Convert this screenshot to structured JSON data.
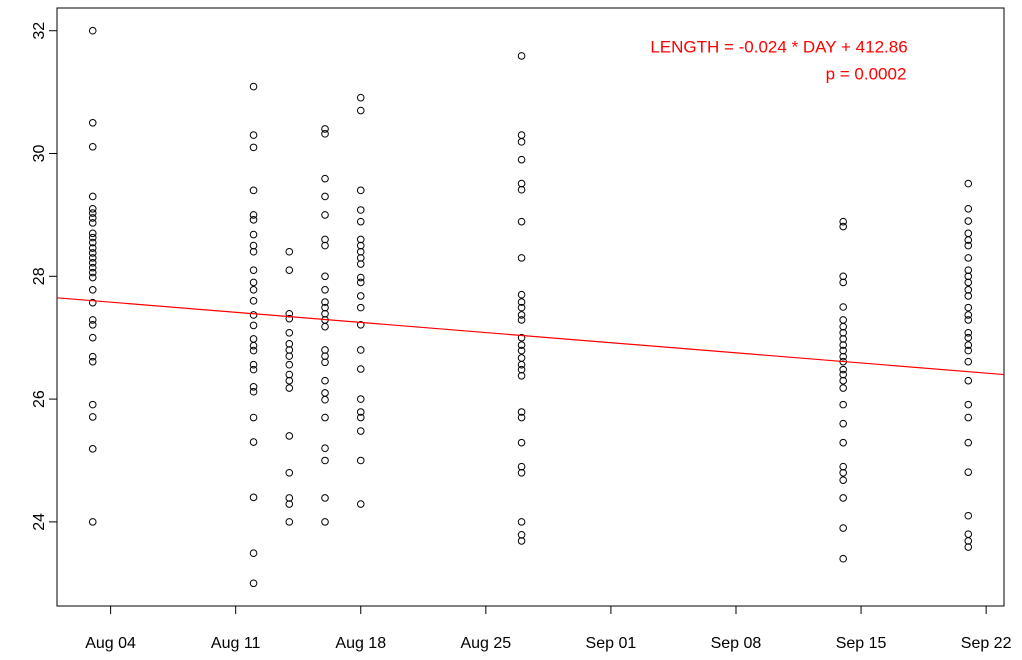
{
  "chart_data": {
    "type": "scatter",
    "annotations": [
      "LENGTH = -0.024 * DAY + 412.86",
      "p = 0.0002"
    ],
    "annotation_color": "#ff0000",
    "x": [
      "Aug 03",
      "Aug 03",
      "Aug 03",
      "Aug 03",
      "Aug 03",
      "Aug 03",
      "Aug 03",
      "Aug 03",
      "Aug 03",
      "Aug 03",
      "Aug 03",
      "Aug 03",
      "Aug 03",
      "Aug 03",
      "Aug 03",
      "Aug 03",
      "Aug 03",
      "Aug 03",
      "Aug 03",
      "Aug 03",
      "Aug 03",
      "Aug 03",
      "Aug 03",
      "Aug 03",
      "Aug 03",
      "Aug 03",
      "Aug 03",
      "Aug 03",
      "Aug 03",
      "Aug 12",
      "Aug 12",
      "Aug 12",
      "Aug 12",
      "Aug 12",
      "Aug 12",
      "Aug 12",
      "Aug 12",
      "Aug 12",
      "Aug 12",
      "Aug 12",
      "Aug 12",
      "Aug 12",
      "Aug 12",
      "Aug 12",
      "Aug 12",
      "Aug 12",
      "Aug 12",
      "Aug 12",
      "Aug 12",
      "Aug 12",
      "Aug 12",
      "Aug 12",
      "Aug 12",
      "Aug 12",
      "Aug 12",
      "Aug 12",
      "Aug 14",
      "Aug 14",
      "Aug 14",
      "Aug 14",
      "Aug 14",
      "Aug 14",
      "Aug 14",
      "Aug 14",
      "Aug 14",
      "Aug 14",
      "Aug 14",
      "Aug 14",
      "Aug 14",
      "Aug 14",
      "Aug 14",
      "Aug 14",
      "Aug 14",
      "Aug 16",
      "Aug 16",
      "Aug 16",
      "Aug 16",
      "Aug 16",
      "Aug 16",
      "Aug 16",
      "Aug 16",
      "Aug 16",
      "Aug 16",
      "Aug 16",
      "Aug 16",
      "Aug 16",
      "Aug 16",
      "Aug 16",
      "Aug 16",
      "Aug 16",
      "Aug 16",
      "Aug 16",
      "Aug 16",
      "Aug 16",
      "Aug 16",
      "Aug 16",
      "Aug 16",
      "Aug 16",
      "Aug 18",
      "Aug 18",
      "Aug 18",
      "Aug 18",
      "Aug 18",
      "Aug 18",
      "Aug 18",
      "Aug 18",
      "Aug 18",
      "Aug 18",
      "Aug 18",
      "Aug 18",
      "Aug 18",
      "Aug 18",
      "Aug 18",
      "Aug 18",
      "Aug 18",
      "Aug 18",
      "Aug 18",
      "Aug 18",
      "Aug 18",
      "Aug 18",
      "Aug 18",
      "Aug 27",
      "Aug 27",
      "Aug 27",
      "Aug 27",
      "Aug 27",
      "Aug 27",
      "Aug 27",
      "Aug 27",
      "Aug 27",
      "Aug 27",
      "Aug 27",
      "Aug 27",
      "Aug 27",
      "Aug 27",
      "Aug 27",
      "Aug 27",
      "Aug 27",
      "Aug 27",
      "Aug 27",
      "Aug 27",
      "Aug 27",
      "Aug 27",
      "Aug 27",
      "Aug 27",
      "Aug 27",
      "Aug 27",
      "Aug 27",
      "Aug 27",
      "Sep 14",
      "Sep 14",
      "Sep 14",
      "Sep 14",
      "Sep 14",
      "Sep 14",
      "Sep 14",
      "Sep 14",
      "Sep 14",
      "Sep 14",
      "Sep 14",
      "Sep 14",
      "Sep 14",
      "Sep 14",
      "Sep 14",
      "Sep 14",
      "Sep 14",
      "Sep 14",
      "Sep 14",
      "Sep 14",
      "Sep 14",
      "Sep 14",
      "Sep 14",
      "Sep 14",
      "Sep 14",
      "Sep 14",
      "Sep 21",
      "Sep 21",
      "Sep 21",
      "Sep 21",
      "Sep 21",
      "Sep 21",
      "Sep 21",
      "Sep 21",
      "Sep 21",
      "Sep 21",
      "Sep 21",
      "Sep 21",
      "Sep 21",
      "Sep 21",
      "Sep 21",
      "Sep 21",
      "Sep 21",
      "Sep 21",
      "Sep 21",
      "Sep 21",
      "Sep 21",
      "Sep 21",
      "Sep 21",
      "Sep 21",
      "Sep 21",
      "Sep 21",
      "Sep 21",
      "Sep 21",
      "Sep 21"
    ],
    "values": [
      32.0,
      30.5,
      30.11,
      29.3,
      29.1,
      29.03,
      28.95,
      28.87,
      28.7,
      28.63,
      28.55,
      28.46,
      28.38,
      28.3,
      28.22,
      28.14,
      28.06,
      27.98,
      27.78,
      27.57,
      27.29,
      27.21,
      27.0,
      26.69,
      26.61,
      25.91,
      25.71,
      25.19,
      24.0,
      31.09,
      30.3,
      30.1,
      29.4,
      29.0,
      28.92,
      28.68,
      28.5,
      28.4,
      28.1,
      27.9,
      27.78,
      27.6,
      27.37,
      27.2,
      26.98,
      26.87,
      26.79,
      26.56,
      26.48,
      26.2,
      26.12,
      25.7,
      25.3,
      24.4,
      23.49,
      23.0,
      28.4,
      28.1,
      27.39,
      27.31,
      27.08,
      26.9,
      26.8,
      26.7,
      26.56,
      26.4,
      26.3,
      26.18,
      25.4,
      24.8,
      24.39,
      24.29,
      24.0,
      30.4,
      30.32,
      29.59,
      29.3,
      29.0,
      28.6,
      28.5,
      28.0,
      27.78,
      27.58,
      27.49,
      27.39,
      27.29,
      27.18,
      26.8,
      26.7,
      26.6,
      26.3,
      26.1,
      25.99,
      25.7,
      25.2,
      25.0,
      24.39,
      24.0,
      30.91,
      30.7,
      29.4,
      29.08,
      28.89,
      28.6,
      28.5,
      28.4,
      28.3,
      28.2,
      27.98,
      27.9,
      27.68,
      27.49,
      27.21,
      26.8,
      26.49,
      26.0,
      25.79,
      25.7,
      25.48,
      25.0,
      24.29,
      31.59,
      30.3,
      30.19,
      29.9,
      29.51,
      29.41,
      28.89,
      28.3,
      27.7,
      27.58,
      27.49,
      27.37,
      27.29,
      27.0,
      26.88,
      26.79,
      26.67,
      26.56,
      26.48,
      26.38,
      25.79,
      25.7,
      25.29,
      24.9,
      24.8,
      24.0,
      23.79,
      23.69,
      28.89,
      28.81,
      28.0,
      27.9,
      27.5,
      27.29,
      27.18,
      27.08,
      26.98,
      26.88,
      26.79,
      26.69,
      26.61,
      26.48,
      26.4,
      26.3,
      26.18,
      25.91,
      25.6,
      25.29,
      24.9,
      24.8,
      24.68,
      24.39,
      23.9,
      23.4,
      29.51,
      29.1,
      28.9,
      28.7,
      28.59,
      28.5,
      28.3,
      28.1,
      28.0,
      27.9,
      27.78,
      27.68,
      27.49,
      27.37,
      27.29,
      27.08,
      27.0,
      26.88,
      26.79,
      26.61,
      26.3,
      25.91,
      25.7,
      25.29,
      24.81,
      24.1,
      23.8,
      23.69,
      23.59
    ],
    "color": "#000000",
    "fit_line": {
      "x": [
        "Aug 01",
        "Sep 23"
      ],
      "values": [
        27.65,
        26.4
      ],
      "color": "#ff0000"
    },
    "xlim": [
      "Aug 01",
      "Sep 23"
    ],
    "xticks": [
      "Aug 04",
      "Aug 11",
      "Aug 18",
      "Aug 25",
      "Sep 01",
      "Sep 08",
      "Sep 15",
      "Sep 22"
    ],
    "ylim": [
      22.63,
      32.37
    ],
    "yticks": [
      24,
      26,
      28,
      30,
      32
    ]
  }
}
